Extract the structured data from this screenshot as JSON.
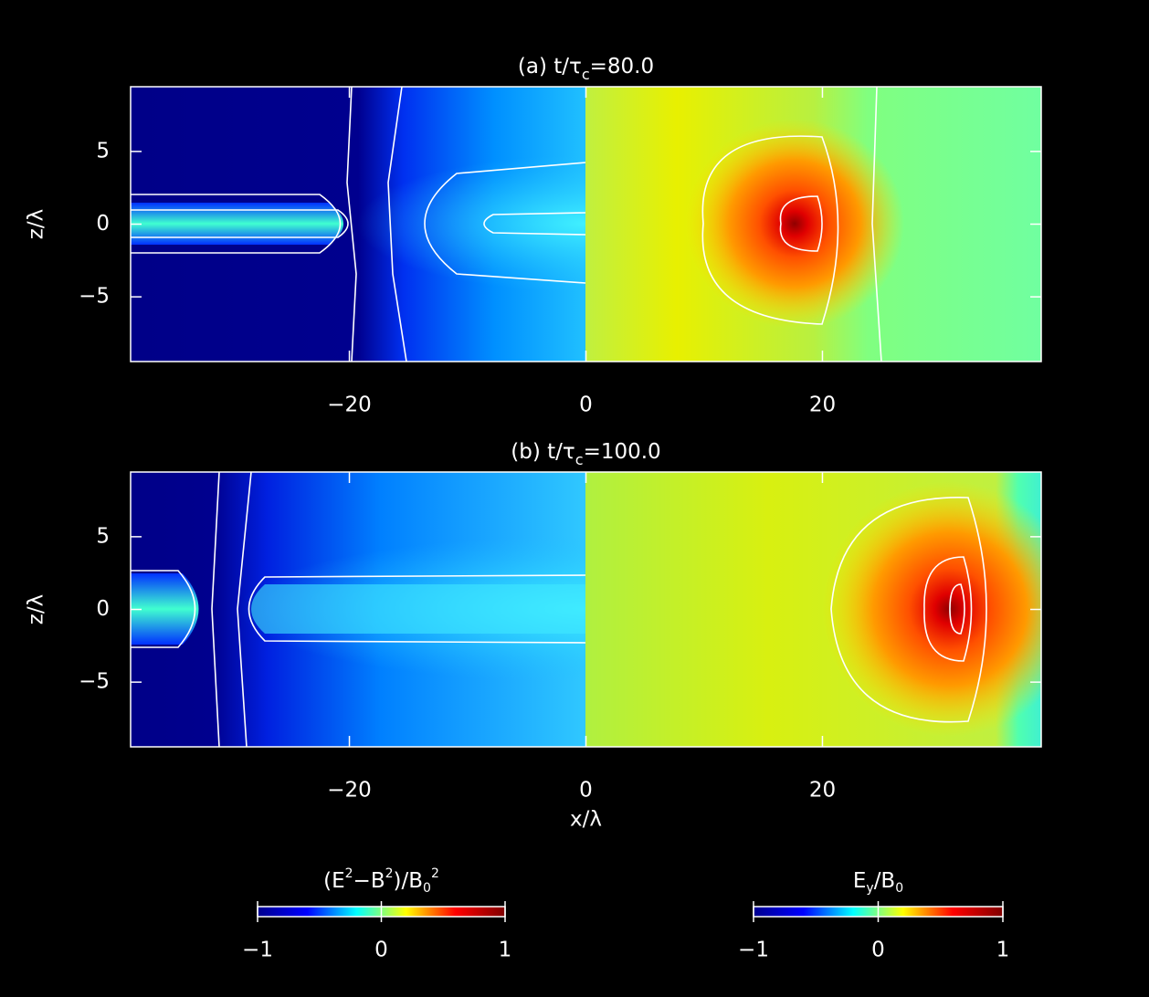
{
  "chart_data": [
    {
      "type": "heatmap",
      "title": [
        "(a) t/τ",
        "c",
        "=80.0"
      ],
      "ylabel": "z/λ",
      "xlim": [
        -38.5,
        38.5
      ],
      "ylim": [
        -9.45,
        9.45
      ],
      "xticks": [
        {
          "value": -20,
          "label": "−20"
        },
        0,
        20
      ],
      "yticks": [
        {
          "value": -5,
          "label": "−5"
        },
        0,
        5
      ]
    },
    {
      "type": "heatmap",
      "title": [
        "(b) t/τ",
        "c",
        "=100.0"
      ],
      "ylabel": "z/λ",
      "xlabel": "x/λ",
      "xlim": [
        -38.5,
        38.5
      ],
      "ylim": [
        -9.45,
        9.45
      ],
      "xticks": [
        {
          "value": -20,
          "label": "−20"
        },
        0,
        20
      ],
      "yticks": [
        {
          "value": -5,
          "label": "−5"
        },
        0,
        5
      ]
    },
    {
      "type": "colorbar",
      "label": [
        "(E",
        "2",
        "−B",
        "2",
        ")/B",
        "0",
        "2"
      ],
      "label_shift": [
        "base",
        "sup",
        "base",
        "sup",
        "base",
        "sub",
        "sup"
      ],
      "lim": [
        -1,
        1
      ],
      "ticks": [
        {
          "value": -1,
          "label": "−1"
        },
        0,
        1
      ],
      "colors": [
        "#00008f",
        "#0000ff",
        "#00ffff",
        "#ffff00",
        "#ff0000",
        "#800000"
      ]
    },
    {
      "type": "colorbar",
      "label": [
        "E",
        "y",
        "/B",
        "0"
      ],
      "label_shift": [
        "base",
        "sub",
        "base",
        "sub"
      ],
      "lim": [
        -1,
        1
      ],
      "ticks": [
        {
          "value": -1,
          "label": "−1"
        },
        0,
        1
      ],
      "colors": [
        "#00008f",
        "#0000ff",
        "#00ffff",
        "#ffff00",
        "#ff0000",
        "#800000"
      ]
    }
  ]
}
